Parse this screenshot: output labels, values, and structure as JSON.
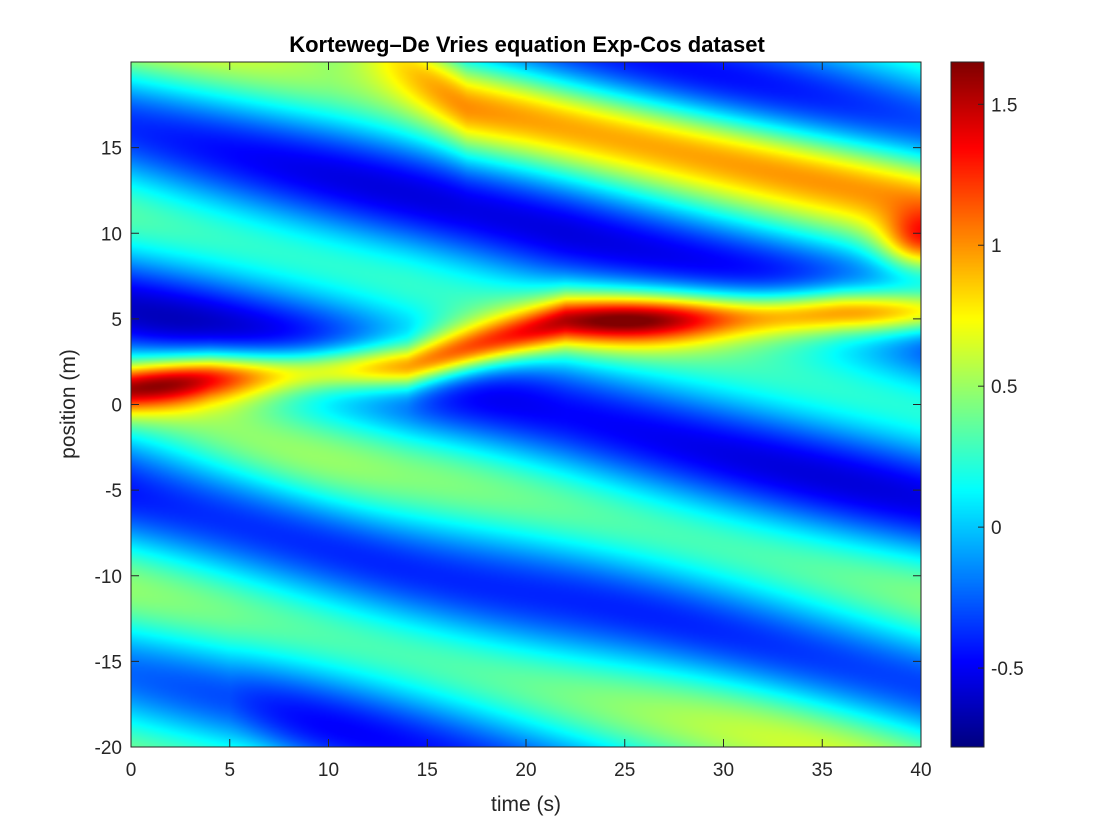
{
  "chart_data": {
    "type": "heatmap",
    "title": "Korteweg–De Vries equation Exp-Cos dataset",
    "xlabel": "time (s)",
    "ylabel": "position (m)",
    "xlim": [
      0,
      40
    ],
    "ylim": [
      -20,
      20
    ],
    "x_ticks": [
      0,
      5,
      10,
      15,
      20,
      25,
      30,
      35,
      40
    ],
    "x_tick_labels": [
      "0",
      "5",
      "10",
      "15",
      "20",
      "25",
      "30",
      "35",
      "40"
    ],
    "y_ticks": [
      -20,
      -15,
      -10,
      -5,
      0,
      5,
      10,
      15
    ],
    "y_tick_labels": [
      "-20",
      "-15",
      "-10",
      "-5",
      "0",
      "5",
      "10",
      "15"
    ],
    "colormap": "jet",
    "clim": [
      -0.78,
      1.65
    ],
    "colorbar_ticks": [
      -0.5,
      0,
      0.5,
      1,
      1.5
    ],
    "colorbar_tick_labels": [
      "-0.5",
      "0",
      "0.5",
      "1",
      "1.5"
    ],
    "grid": false,
    "features": {
      "main_soliton": {
        "amplitude": 1.6,
        "path": [
          [
            0,
            1.0
          ],
          [
            4,
            1.6
          ],
          [
            10,
            2.0
          ],
          [
            14,
            2.2
          ],
          [
            17,
            3.2
          ],
          [
            20,
            4.2
          ],
          [
            22,
            4.9
          ],
          [
            26,
            5.0
          ],
          [
            32,
            5.2
          ],
          [
            36,
            5.4
          ],
          [
            40,
            5.4
          ]
        ]
      },
      "secondary_waves": [
        {
          "amplitude": 0.7,
          "path": [
            [
              10,
              24.0
            ],
            [
              17,
              17.5
            ],
            [
              20,
              17.0
            ],
            [
              40,
              12.5
            ]
          ]
        },
        {
          "amplitude": 0.35,
          "path": [
            [
              0,
              -18.0
            ],
            [
              5,
              -19.5
            ],
            [
              15,
              -30.0
            ]
          ]
        },
        {
          "amplitude": 0.15,
          "path": [
            [
              0,
              2.0
            ],
            [
              15,
              -8.0
            ],
            [
              40,
              -22.0
            ]
          ]
        }
      ],
      "blob": {
        "t": 40,
        "x": 9.5,
        "amplitude": 0.75
      }
    }
  }
}
